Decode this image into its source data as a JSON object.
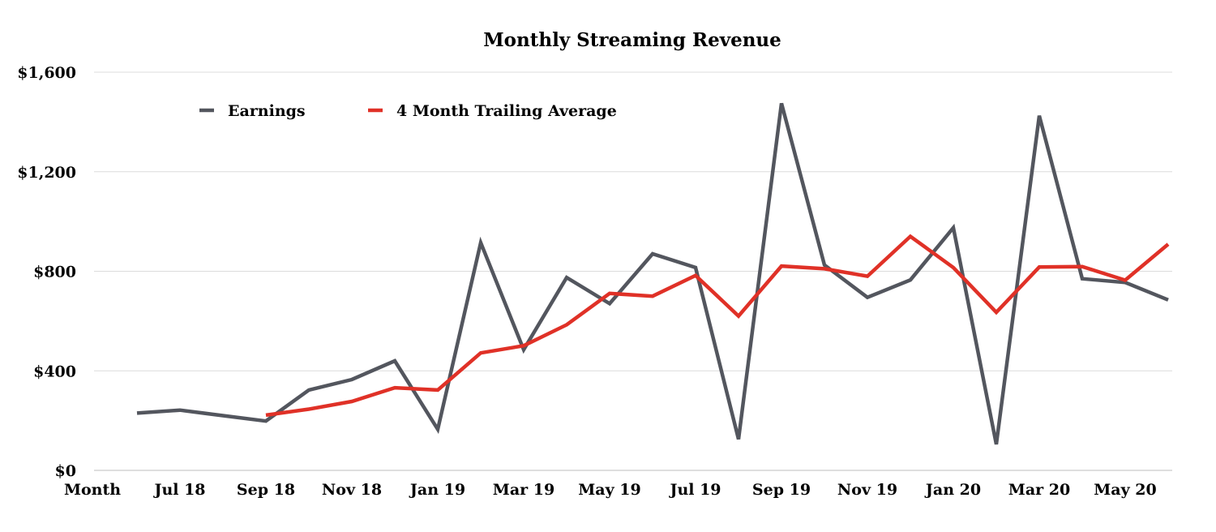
{
  "chart_data": {
    "type": "line",
    "title": "Monthly Streaming Revenue",
    "xlabel": "Month",
    "ylabel": "",
    "ylim": [
      0,
      1600
    ],
    "yticks": [
      0,
      400,
      800,
      1200,
      1600
    ],
    "ytick_labels": [
      "$0",
      "$400",
      "$800",
      "$1,200",
      "$1,600"
    ],
    "grid": true,
    "legend_position": "top-left",
    "x": [
      "Jun 18",
      "Jul 18",
      "Aug 18",
      "Sep 18",
      "Oct 18",
      "Nov 18",
      "Dec 18",
      "Jan 19",
      "Feb 19",
      "Mar 19",
      "Apr 19",
      "May 19",
      "Jun 19",
      "Jul 19",
      "Aug 19",
      "Sep 19",
      "Oct 19",
      "Nov 19",
      "Dec 19",
      "Jan 20",
      "Feb 20",
      "Mar 20",
      "Apr 20",
      "May 20",
      "Jun 20"
    ],
    "xtick_labels": [
      "Jul 18",
      "Sep 18",
      "Nov 18",
      "Jan 19",
      "Mar 19",
      "May 19",
      "Jul 19",
      "Sep 19",
      "Nov 19",
      "Jan 20",
      "Mar 20",
      "May 20"
    ],
    "series": [
      {
        "name": "Earnings",
        "color": "#53565e",
        "values": [
          230,
          242,
          220,
          198,
          323,
          365,
          440,
          165,
          915,
          485,
          775,
          670,
          870,
          815,
          125,
          1475,
          825,
          695,
          765,
          975,
          105,
          1425,
          770,
          755,
          685
        ]
      },
      {
        "name": "4 Month Trailing Average",
        "color": "#e03127",
        "values": [
          null,
          null,
          null,
          222,
          246,
          277,
          332,
          323,
          472,
          501,
          585,
          711,
          700,
          783,
          620,
          821,
          810,
          780,
          940,
          815,
          635,
          817,
          819,
          764,
          909
        ]
      }
    ]
  }
}
